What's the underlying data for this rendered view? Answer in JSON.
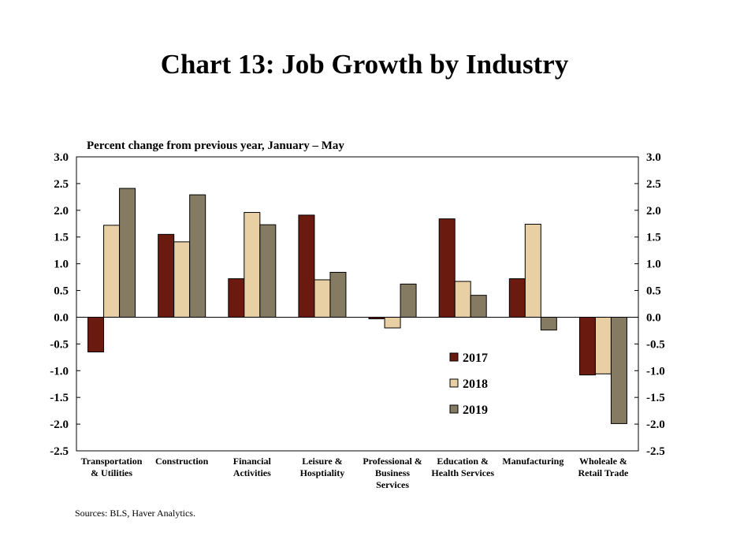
{
  "title": "Chart 13: Job Growth by Industry",
  "source": "Sources: BLS, Haver Analytics.",
  "colors": {
    "2017": "#6b1a10",
    "2018": "#e8d0a4",
    "2019": "#857a62"
  },
  "chart_data": {
    "type": "bar",
    "subtitle": "Percent change from previous year, January – May",
    "categories": [
      [
        "Transportation",
        "& Utilities"
      ],
      [
        "Construction"
      ],
      [
        "Financial",
        "Activities"
      ],
      [
        "Leisure &",
        "Hosptiality"
      ],
      [
        "Professional &",
        "Business",
        "Services"
      ],
      [
        "Education &",
        "Health Services"
      ],
      [
        "Manufacturing"
      ],
      [
        "Wholeale &",
        "Retail Trade"
      ]
    ],
    "series": [
      {
        "name": "2017",
        "values": [
          -0.65,
          1.55,
          0.72,
          1.91,
          -0.03,
          1.84,
          0.72,
          -1.08
        ]
      },
      {
        "name": "2018",
        "values": [
          1.72,
          1.41,
          1.96,
          0.7,
          -0.2,
          0.67,
          1.74,
          -1.06
        ]
      },
      {
        "name": "2019",
        "values": [
          2.41,
          2.29,
          1.73,
          0.84,
          0.62,
          0.41,
          -0.24,
          -1.99
        ]
      }
    ],
    "ylim": [
      -2.5,
      3.0
    ],
    "yticks": [
      "3.0",
      "2.5",
      "2.0",
      "1.5",
      "1.0",
      "0.5",
      "0.0",
      "-0.5",
      "-1.0",
      "-1.5",
      "-2.0",
      "-2.5"
    ],
    "legend_position": "lower-right inside plot",
    "grid": false
  }
}
